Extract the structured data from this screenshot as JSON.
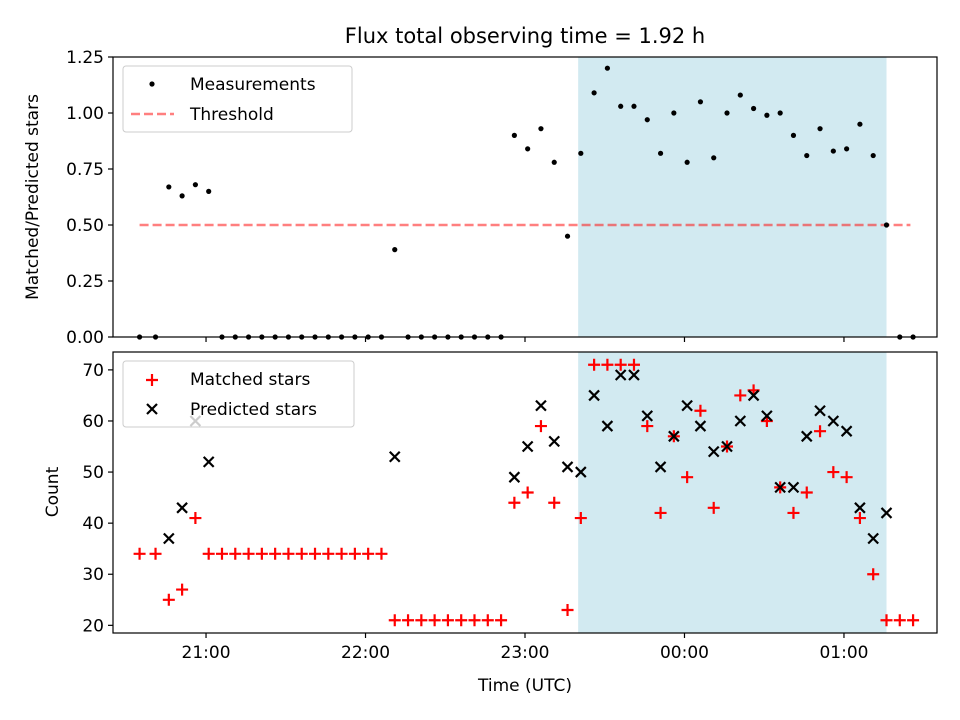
{
  "title": "Flux total observing time = 1.92 h",
  "colors": {
    "shade": "#add8e6",
    "threshold": "#ff0000",
    "matched": "#ff0000",
    "predicted": "#000000",
    "measurements": "#000000"
  },
  "chart_data": [
    {
      "type": "scatter",
      "xlabel": "",
      "ylabel": "Matched/Predicted stars",
      "xlim": [
        "20:25",
        "01:35"
      ],
      "ylim": [
        0,
        1.25
      ],
      "yticks": [
        "0.00",
        "0.25",
        "0.50",
        "0.75",
        "1.00",
        "1.25"
      ],
      "grid": false,
      "legend_position": "upper left",
      "shaded_region": {
        "from": "23:20",
        "to": "01:16"
      },
      "threshold": {
        "name": "Threshold",
        "y": 0.5,
        "from": "20:35",
        "to": "01:25"
      },
      "series": [
        {
          "name": "Measurements",
          "marker": "dot",
          "x": [
            "20:35",
            "20:41",
            "20:46",
            "20:51",
            "20:56",
            "21:01",
            "21:06",
            "21:11",
            "21:16",
            "21:21",
            "21:26",
            "21:31",
            "21:36",
            "21:41",
            "21:46",
            "21:51",
            "21:56",
            "22:01",
            "22:06",
            "22:11",
            "22:16",
            "22:21",
            "22:26",
            "22:31",
            "22:36",
            "22:41",
            "22:46",
            "22:51",
            "22:56",
            "23:01",
            "23:06",
            "23:11",
            "23:16",
            "23:21",
            "23:26",
            "23:31",
            "23:36",
            "23:41",
            "23:46",
            "23:51",
            "23:56",
            "00:01",
            "00:06",
            "00:11",
            "00:16",
            "00:21",
            "00:26",
            "00:31",
            "00:36",
            "00:41",
            "00:46",
            "00:51",
            "00:56",
            "01:01",
            "01:06",
            "01:11",
            "01:16",
            "01:21",
            "01:26"
          ],
          "y": [
            0.0,
            0.0,
            0.67,
            0.63,
            0.68,
            0.65,
            0.0,
            0.0,
            0.0,
            0.0,
            0.0,
            0.0,
            0.0,
            0.0,
            0.0,
            0.0,
            0.0,
            0.0,
            0.0,
            0.39,
            0.0,
            0.0,
            0.0,
            0.0,
            0.0,
            0.0,
            0.0,
            0.0,
            0.9,
            0.84,
            0.93,
            0.78,
            0.45,
            0.82,
            1.09,
            1.2,
            1.03,
            1.03,
            0.97,
            0.82,
            1.0,
            0.78,
            1.05,
            0.8,
            1.0,
            1.08,
            1.02,
            0.99,
            1.0,
            0.9,
            0.81,
            0.93,
            0.83,
            0.84,
            0.95,
            0.81,
            0.5,
            0.0,
            0.0
          ]
        }
      ]
    },
    {
      "type": "scatter",
      "xlabel": "Time (UTC)",
      "ylabel": "Count",
      "xticks": [
        "21:00",
        "22:00",
        "23:00",
        "00:00",
        "01:00"
      ],
      "xlim": [
        "20:25",
        "01:35"
      ],
      "ylim": [
        18.5,
        73.5
      ],
      "yticks": [
        "20",
        "30",
        "40",
        "50",
        "60",
        "70"
      ],
      "grid": false,
      "legend_position": "upper left",
      "shaded_region": {
        "from": "23:20",
        "to": "01:16"
      },
      "series": [
        {
          "name": "Matched stars",
          "marker": "plus",
          "x": [
            "20:35",
            "20:41",
            "20:46",
            "20:51",
            "20:56",
            "21:01",
            "21:06",
            "21:11",
            "21:16",
            "21:21",
            "21:26",
            "21:31",
            "21:36",
            "21:41",
            "21:46",
            "21:51",
            "21:56",
            "22:01",
            "22:06",
            "22:11",
            "22:16",
            "22:21",
            "22:26",
            "22:31",
            "22:36",
            "22:41",
            "22:46",
            "22:51",
            "22:56",
            "23:01",
            "23:06",
            "23:11",
            "23:16",
            "23:21",
            "23:26",
            "23:31",
            "23:36",
            "23:41",
            "23:46",
            "23:51",
            "23:56",
            "00:01",
            "00:06",
            "00:11",
            "00:16",
            "00:21",
            "00:26",
            "00:31",
            "00:36",
            "00:41",
            "00:46",
            "00:51",
            "00:56",
            "01:01",
            "01:06",
            "01:11",
            "01:16",
            "01:21",
            "01:26"
          ],
          "y": [
            34,
            34,
            25,
            27,
            41,
            34,
            34,
            34,
            34,
            34,
            34,
            34,
            34,
            34,
            34,
            34,
            34,
            34,
            34,
            21,
            21,
            21,
            21,
            21,
            21,
            21,
            21,
            21,
            44,
            46,
            59,
            44,
            23,
            41,
            71,
            71,
            71,
            71,
            59,
            42,
            57,
            49,
            62,
            43,
            55,
            65,
            66,
            60,
            47,
            42,
            46,
            58,
            50,
            49,
            41,
            30,
            21,
            21,
            21
          ]
        },
        {
          "name": "Predicted stars",
          "marker": "x",
          "x": [
            "20:46",
            "20:51",
            "20:56",
            "21:01",
            "22:11",
            "22:56",
            "23:01",
            "23:06",
            "23:11",
            "23:16",
            "23:21",
            "23:26",
            "23:31",
            "23:36",
            "23:41",
            "23:46",
            "23:51",
            "23:56",
            "00:01",
            "00:06",
            "00:11",
            "00:16",
            "00:21",
            "00:26",
            "00:31",
            "00:36",
            "00:41",
            "00:46",
            "00:51",
            "00:56",
            "01:01",
            "01:06",
            "01:11",
            "01:16"
          ],
          "y": [
            37,
            43,
            60,
            52,
            53,
            49,
            55,
            63,
            56,
            51,
            50,
            65,
            59,
            69,
            69,
            61,
            51,
            57,
            63,
            59,
            54,
            55,
            60,
            65,
            61,
            47,
            47,
            57,
            62,
            60,
            58,
            43,
            37,
            42
          ]
        }
      ]
    }
  ]
}
